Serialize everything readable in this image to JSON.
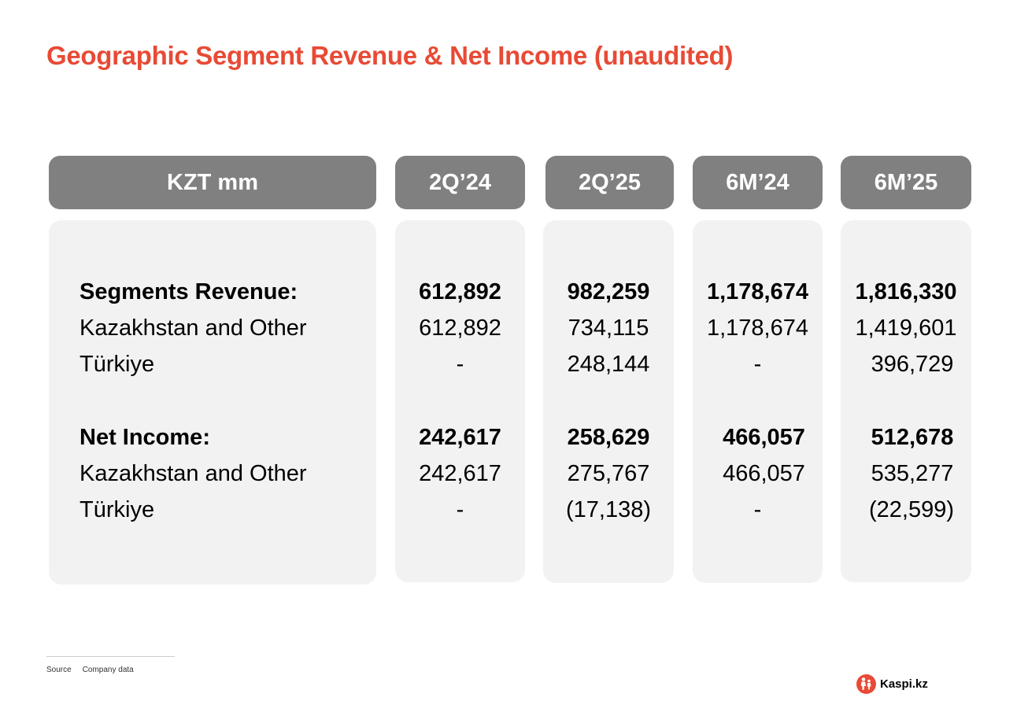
{
  "title": "Geographic Segment Revenue & Net Income (unaudited)",
  "colors": {
    "accent": "#e84a35",
    "header_bg": "#808080",
    "panel_bg": "#f2f2f2"
  },
  "table": {
    "headers": [
      "KZT mm",
      "2Q’24",
      "2Q’25",
      "6M’24",
      "6M’25"
    ],
    "rows": [
      {
        "label": "Segments Revenue:",
        "bold": true,
        "values": [
          "612,892",
          "982,259",
          "1,178,674",
          "1,816,330"
        ]
      },
      {
        "label": "Kazakhstan and Other",
        "bold": false,
        "values": [
          "612,892",
          "734,115",
          "1,178,674",
          "1,419,601"
        ]
      },
      {
        "label": "Türkiye",
        "bold": false,
        "values": [
          "-",
          "248,144",
          "-",
          "396,729"
        ]
      },
      {
        "label": "Net Income:",
        "bold": true,
        "values": [
          "242,617",
          "258,629",
          "466,057",
          "512,678"
        ]
      },
      {
        "label": "Kazakhstan and Other",
        "bold": false,
        "values": [
          "242,617",
          "275,767",
          "466,057",
          "535,277"
        ]
      },
      {
        "label": "Türkiye",
        "bold": false,
        "values": [
          "-",
          "(17,138)",
          "-",
          "(22,599)"
        ]
      }
    ]
  },
  "footer": {
    "source_label": "Source",
    "source_value": "Company data"
  },
  "logo": {
    "text": "Kaspi.kz",
    "icon": "kaspi-logo-icon"
  }
}
